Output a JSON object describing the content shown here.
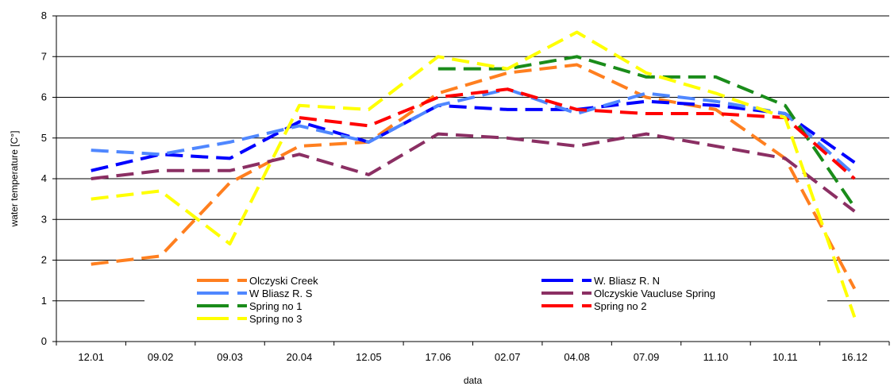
{
  "chart_data": {
    "type": "line",
    "title": "",
    "xlabel": "data",
    "ylabel": "water temperature [C°]",
    "categories": [
      "12.01",
      "09.02",
      "09.03",
      "20.04",
      "12.05",
      "17.06",
      "02.07",
      "04.08",
      "07.09",
      "11.10",
      "10.11",
      "16.12"
    ],
    "ylim": [
      0,
      8
    ],
    "yticks": [
      0,
      1,
      2,
      3,
      4,
      5,
      6,
      7,
      8
    ],
    "grid": "horizontal",
    "legend_position": "bottom-center",
    "series": [
      {
        "name": "Olczyski Creek",
        "color": "#ff7f1f",
        "values": [
          1.9,
          2.1,
          3.9,
          4.8,
          4.9,
          6.1,
          6.6,
          6.8,
          6.0,
          5.7,
          4.5,
          1.3
        ]
      },
      {
        "name": "W. Bliasz R. N",
        "color": "#0000ff",
        "values": [
          4.2,
          4.6,
          4.5,
          5.4,
          4.9,
          5.8,
          5.7,
          5.7,
          5.9,
          5.8,
          5.6,
          4.4
        ]
      },
      {
        "name": "W Bliasz R. S",
        "color": "#4f87ff",
        "values": [
          4.7,
          4.6,
          4.9,
          5.3,
          4.9,
          5.8,
          6.2,
          5.6,
          6.1,
          5.9,
          5.6,
          4.1
        ]
      },
      {
        "name": "Olczyskie Vaucluse Spring",
        "color": "#8b2f63",
        "values": [
          4.0,
          4.2,
          4.2,
          4.6,
          4.1,
          5.1,
          5.0,
          4.8,
          5.1,
          4.8,
          4.5,
          3.2
        ]
      },
      {
        "name": "Spring no 1",
        "color": "#1a8c1a",
        "values": [
          null,
          null,
          null,
          null,
          null,
          6.7,
          6.7,
          7.0,
          6.5,
          6.5,
          5.8,
          3.3
        ]
      },
      {
        "name": "Spring no 2",
        "color": "#ff0000",
        "values": [
          null,
          null,
          null,
          5.5,
          5.3,
          6.0,
          6.2,
          5.7,
          5.6,
          5.6,
          5.5,
          4.0
        ]
      },
      {
        "name": "Spring no 3",
        "color": "#ffff00",
        "values": [
          3.5,
          3.7,
          2.4,
          5.8,
          5.7,
          7.0,
          6.7,
          7.6,
          6.6,
          6.1,
          5.5,
          0.6
        ]
      }
    ],
    "legend_rows": [
      [
        "Olczyski Creek",
        "W. Bliasz R. N"
      ],
      [
        "W Bliasz R. S",
        "Olczyskie Vaucluse Spring"
      ],
      [
        "Spring no 1",
        "Spring no 2"
      ],
      [
        "Spring no 3",
        ""
      ]
    ]
  }
}
